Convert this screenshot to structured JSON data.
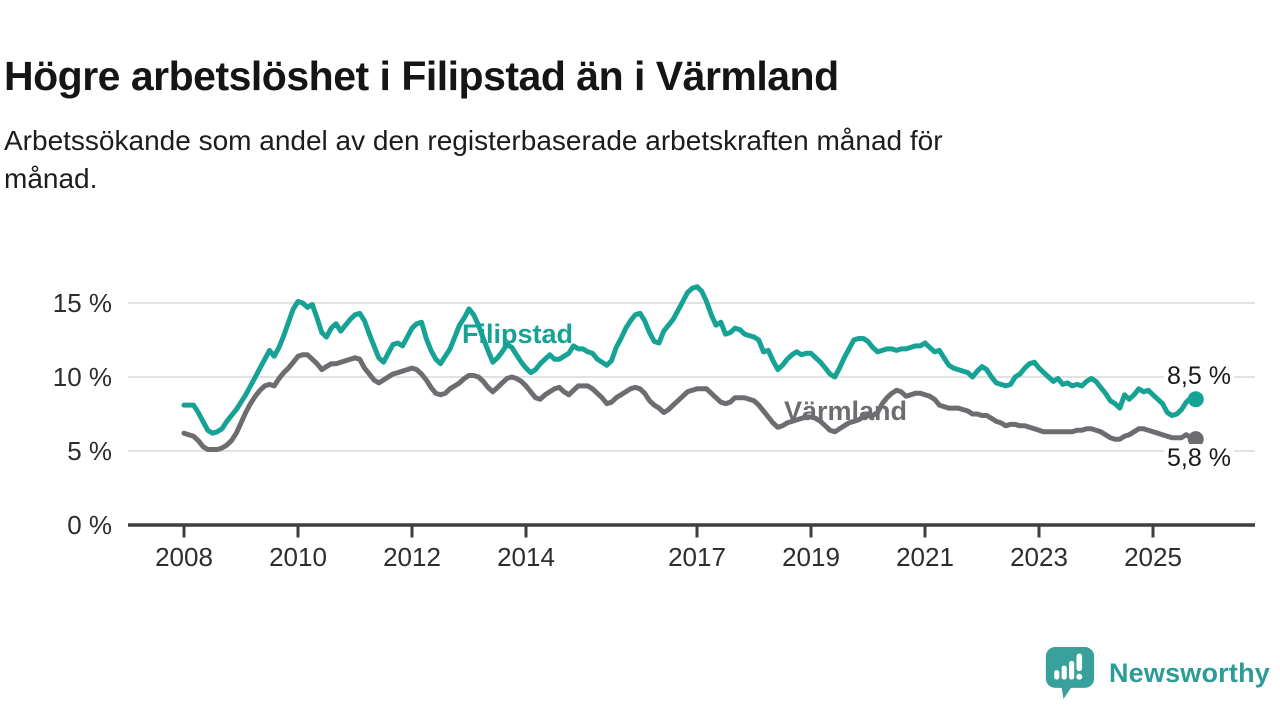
{
  "header": {
    "title": "Högre arbetslöshet i Filipstad än i Värmland",
    "subtitle_lines": [
      "Arbetssökande som andel av den registerbaserade arbetskraften månad för",
      "månad."
    ]
  },
  "colors": {
    "filipstad": "#16a294",
    "varmland": "#6e6c70",
    "grid": "#d8d8d8",
    "axis": "#3f3f3f",
    "text": "#1a1a1a",
    "brand_teal": "#2d9c97"
  },
  "chart_data": {
    "type": "line",
    "unit": "%",
    "x_start_year": 2008,
    "x_start_month": 1,
    "x_end_year": 2025,
    "x_end_month": 10,
    "points_per_year": 12,
    "ylim": [
      0,
      16.5
    ],
    "grid": true,
    "legend_position": "inline-labels",
    "y_ticks": [
      {
        "value": 0,
        "label": "0 %"
      },
      {
        "value": 5,
        "label": "5 %"
      },
      {
        "value": 10,
        "label": "10 %"
      },
      {
        "value": 15,
        "label": "15 %"
      }
    ],
    "x_ticks": [
      {
        "year": 2008,
        "label": "2008"
      },
      {
        "year": 2010,
        "label": "2010"
      },
      {
        "year": 2012,
        "label": "2012"
      },
      {
        "year": 2014,
        "label": "2014"
      },
      {
        "year": 2017,
        "label": "2017"
      },
      {
        "year": 2019,
        "label": "2019"
      },
      {
        "year": 2021,
        "label": "2021"
      },
      {
        "year": 2023,
        "label": "2023"
      },
      {
        "year": 2025,
        "label": "2025"
      }
    ],
    "series": [
      {
        "key": "filipstad",
        "name": "Filipstad",
        "color": "#16a294",
        "end_label": "8,5 %",
        "values": [
          8.1,
          8.1,
          8.1,
          7.6,
          7.0,
          6.4,
          6.2,
          6.3,
          6.5,
          7.0,
          7.4,
          7.8,
          8.3,
          8.8,
          9.4,
          10.0,
          10.6,
          11.2,
          11.8,
          11.4,
          12.0,
          12.8,
          13.7,
          14.6,
          15.1,
          15.0,
          14.7,
          14.9,
          14.0,
          13.0,
          12.7,
          13.3,
          13.6,
          13.1,
          13.5,
          13.9,
          14.2,
          14.3,
          13.8,
          12.9,
          12.1,
          11.3,
          11.0,
          11.6,
          12.2,
          12.3,
          12.1,
          12.7,
          13.3,
          13.6,
          13.7,
          12.6,
          11.8,
          11.2,
          10.9,
          11.4,
          11.9,
          12.7,
          13.5,
          14.0,
          14.6,
          14.2,
          13.5,
          12.6,
          11.8,
          11.0,
          11.3,
          11.7,
          12.2,
          12.0,
          11.5,
          11.0,
          10.6,
          10.3,
          10.5,
          10.9,
          11.2,
          11.5,
          11.2,
          11.2,
          11.4,
          11.6,
          12.1,
          11.9,
          11.9,
          11.7,
          11.6,
          11.2,
          11.0,
          10.8,
          11.1,
          12.0,
          12.6,
          13.3,
          13.8,
          14.2,
          14.3,
          13.8,
          13.0,
          12.4,
          12.3,
          13.1,
          13.5,
          13.9,
          14.5,
          15.1,
          15.7,
          16.0,
          16.1,
          15.8,
          15.1,
          14.2,
          13.5,
          13.7,
          12.9,
          13.0,
          13.3,
          13.2,
          12.9,
          12.8,
          12.7,
          12.5,
          11.7,
          11.8,
          11.1,
          10.5,
          10.8,
          11.2,
          11.5,
          11.7,
          11.5,
          11.6,
          11.6,
          11.3,
          11.0,
          10.6,
          10.2,
          10.0,
          10.6,
          11.3,
          11.9,
          12.5,
          12.6,
          12.6,
          12.4,
          12.0,
          11.7,
          11.8,
          11.9,
          11.9,
          11.8,
          11.9,
          11.9,
          12.0,
          12.1,
          12.1,
          12.3,
          12.0,
          11.7,
          11.8,
          11.3,
          10.8,
          10.6,
          10.5,
          10.4,
          10.3,
          10.0,
          10.4,
          10.7,
          10.5,
          10.0,
          9.6,
          9.5,
          9.4,
          9.5,
          10.0,
          10.2,
          10.6,
          10.9,
          11.0,
          10.6,
          10.3,
          10.0,
          9.7,
          9.9,
          9.5,
          9.6,
          9.4,
          9.5,
          9.4,
          9.7,
          9.9,
          9.7,
          9.3,
          8.9,
          8.4,
          8.2,
          7.9,
          8.8,
          8.5,
          8.8,
          9.2,
          9.0,
          9.1,
          8.8,
          8.5,
          8.2,
          7.6,
          7.4,
          7.5,
          7.8,
          8.3,
          8.6,
          8.5
        ]
      },
      {
        "key": "varmland",
        "name": "Värmland",
        "color": "#6e6c70",
        "end_label": "5,8 %",
        "values": [
          6.2,
          6.1,
          6.0,
          5.7,
          5.3,
          5.1,
          5.1,
          5.1,
          5.2,
          5.4,
          5.7,
          6.2,
          6.9,
          7.6,
          8.2,
          8.7,
          9.1,
          9.4,
          9.5,
          9.4,
          9.9,
          10.3,
          10.6,
          11.0,
          11.4,
          11.5,
          11.5,
          11.2,
          10.9,
          10.5,
          10.7,
          10.9,
          10.9,
          11.0,
          11.1,
          11.2,
          11.3,
          11.2,
          10.6,
          10.2,
          9.8,
          9.6,
          9.8,
          10.0,
          10.2,
          10.3,
          10.4,
          10.5,
          10.6,
          10.5,
          10.2,
          9.8,
          9.3,
          8.9,
          8.8,
          8.9,
          9.2,
          9.4,
          9.6,
          9.9,
          10.1,
          10.1,
          10.0,
          9.7,
          9.3,
          9.0,
          9.3,
          9.6,
          9.9,
          10.0,
          9.9,
          9.7,
          9.4,
          9.0,
          8.6,
          8.5,
          8.8,
          9.0,
          9.2,
          9.3,
          9.0,
          8.8,
          9.1,
          9.4,
          9.4,
          9.4,
          9.2,
          8.9,
          8.6,
          8.2,
          8.3,
          8.6,
          8.8,
          9.0,
          9.2,
          9.3,
          9.2,
          8.9,
          8.4,
          8.1,
          7.9,
          7.6,
          7.8,
          8.1,
          8.4,
          8.7,
          9.0,
          9.1,
          9.2,
          9.2,
          9.2,
          8.9,
          8.6,
          8.3,
          8.2,
          8.3,
          8.6,
          8.6,
          8.6,
          8.5,
          8.4,
          8.1,
          7.7,
          7.3,
          6.9,
          6.6,
          6.7,
          6.9,
          7.0,
          7.1,
          7.2,
          7.3,
          7.3,
          7.2,
          7.0,
          6.7,
          6.4,
          6.3,
          6.5,
          6.7,
          6.9,
          7.0,
          7.1,
          7.3,
          7.4,
          7.4,
          7.6,
          8.2,
          8.6,
          8.9,
          9.1,
          9.0,
          8.7,
          8.8,
          8.9,
          8.9,
          8.8,
          8.7,
          8.5,
          8.1,
          8.0,
          7.9,
          7.9,
          7.9,
          7.8,
          7.7,
          7.5,
          7.5,
          7.4,
          7.4,
          7.2,
          7.0,
          6.9,
          6.7,
          6.8,
          6.8,
          6.7,
          6.7,
          6.6,
          6.5,
          6.4,
          6.3,
          6.3,
          6.3,
          6.3,
          6.3,
          6.3,
          6.3,
          6.4,
          6.4,
          6.5,
          6.5,
          6.4,
          6.3,
          6.1,
          5.9,
          5.8,
          5.8,
          6.0,
          6.1,
          6.3,
          6.5,
          6.5,
          6.4,
          6.3,
          6.2,
          6.1,
          6.0,
          5.9,
          5.9,
          5.9,
          6.1,
          5.9,
          5.8
        ]
      }
    ]
  },
  "footer": {
    "brand": "Newsworthy"
  }
}
